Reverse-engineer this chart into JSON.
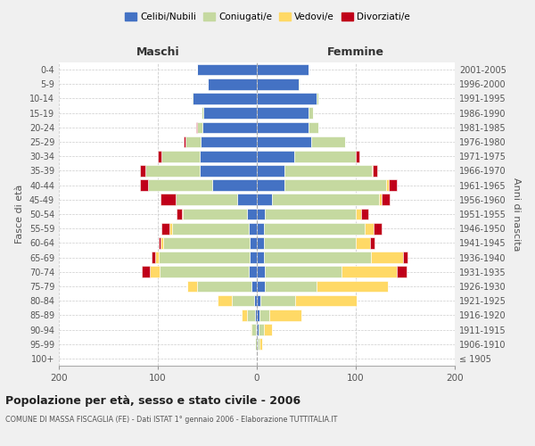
{
  "age_groups": [
    "100+",
    "95-99",
    "90-94",
    "85-89",
    "80-84",
    "75-79",
    "70-74",
    "65-69",
    "60-64",
    "55-59",
    "50-54",
    "45-49",
    "40-44",
    "35-39",
    "30-34",
    "25-29",
    "20-24",
    "15-19",
    "10-14",
    "5-9",
    "0-4"
  ],
  "birth_years": [
    "≤ 1905",
    "1906-1910",
    "1911-1915",
    "1916-1920",
    "1921-1925",
    "1926-1930",
    "1931-1935",
    "1936-1940",
    "1941-1945",
    "1946-1950",
    "1951-1955",
    "1956-1960",
    "1961-1965",
    "1966-1970",
    "1971-1975",
    "1976-1980",
    "1981-1985",
    "1986-1990",
    "1991-1995",
    "1996-2000",
    "2001-2005"
  ],
  "males_celibe": [
    0,
    0,
    1,
    2,
    3,
    5,
    8,
    7,
    7,
    8,
    10,
    20,
    45,
    58,
    58,
    57,
    55,
    54,
    65,
    50,
    60
  ],
  "males_coniugato": [
    0,
    2,
    4,
    8,
    22,
    55,
    90,
    92,
    88,
    78,
    65,
    62,
    65,
    55,
    38,
    15,
    5,
    2,
    1,
    0,
    0
  ],
  "males_vedovo": [
    0,
    0,
    1,
    5,
    15,
    10,
    10,
    4,
    2,
    2,
    1,
    0,
    0,
    0,
    0,
    0,
    0,
    0,
    0,
    0,
    0
  ],
  "males_divorziato": [
    0,
    0,
    0,
    0,
    0,
    0,
    8,
    3,
    2,
    8,
    5,
    15,
    8,
    5,
    4,
    2,
    1,
    0,
    0,
    0,
    0
  ],
  "females_nubile": [
    0,
    1,
    2,
    3,
    4,
    8,
    8,
    7,
    7,
    7,
    8,
    15,
    28,
    28,
    38,
    55,
    52,
    52,
    60,
    42,
    52
  ],
  "females_coniugata": [
    0,
    2,
    5,
    10,
    35,
    52,
    78,
    108,
    93,
    102,
    92,
    108,
    103,
    88,
    62,
    34,
    10,
    5,
    2,
    1,
    0
  ],
  "females_vedova": [
    0,
    2,
    8,
    32,
    62,
    72,
    55,
    33,
    14,
    9,
    5,
    3,
    2,
    1,
    0,
    0,
    0,
    0,
    0,
    0,
    0
  ],
  "females_divorziata": [
    0,
    0,
    0,
    0,
    0,
    0,
    10,
    4,
    5,
    8,
    8,
    8,
    8,
    5,
    4,
    0,
    0,
    0,
    0,
    0,
    0
  ],
  "color_celibe": "#4472C4",
  "color_coniugato": "#c5d9a0",
  "color_vedovo": "#ffd966",
  "color_divorziato": "#c0001a",
  "legend_labels": [
    "Celibi/Nubili",
    "Coniugati/e",
    "Vedovi/e",
    "Divorziati/e"
  ],
  "title1": "Popolazione per età, sesso e stato civile - 2006",
  "title2": "COMUNE DI MASSA FISCAGLIA (FE) - Dati ISTAT 1° gennaio 2006 - Elaborazione TUTTITALIA.IT",
  "label_maschi": "Maschi",
  "label_femmine": "Femmine",
  "label_fasce": "Fasce di età",
  "label_anni": "Anni di nascita",
  "xlim": 200,
  "bg_color": "#f0f0f0",
  "plot_bg": "#ffffff"
}
